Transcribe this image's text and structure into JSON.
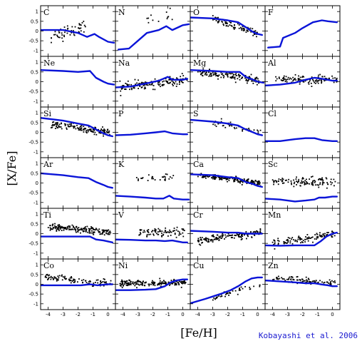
{
  "chart_data": {
    "type": "scatter",
    "xlabel": "[Fe/H]",
    "ylabel": "[X/Fe]",
    "credit": "Kobayashi et al. 2006",
    "xlim": [
      -4.5,
      0.5
    ],
    "ylim": [
      -1.3,
      1.3
    ],
    "xticks": [
      -4,
      -3,
      -2,
      -1,
      0
    ],
    "yticks": [
      -1,
      -0.5,
      0,
      0.5,
      1
    ],
    "colors": {
      "model": "#0a14d8",
      "points": "#000000"
    },
    "panels": [
      {
        "element": "C",
        "model": [
          [
            -4.6,
            0.05
          ],
          [
            -3,
            0.05
          ],
          [
            -2,
            -0.1
          ],
          [
            -1.4,
            -0.3
          ],
          [
            -0.9,
            -0.15
          ],
          [
            -0.6,
            -0.3
          ],
          [
            0,
            -0.55
          ],
          [
            0.4,
            -0.6
          ]
        ],
        "obs": {
          "n": 55,
          "x": [
            -3.8,
            -1.5
          ],
          "y": [
            -0.3,
            0.3
          ],
          "sd": 0.3
        }
      },
      {
        "element": "N",
        "model": [
          [
            -4.3,
            -0.95
          ],
          [
            -3.6,
            -0.9
          ],
          [
            -3,
            -0.5
          ],
          [
            -2.4,
            -0.1
          ],
          [
            -1.6,
            0.05
          ],
          [
            -1.1,
            0.25
          ],
          [
            -0.7,
            0.05
          ],
          [
            0,
            0.3
          ],
          [
            0.4,
            0.35
          ]
        ],
        "obs": {
          "n": 12,
          "x": [
            -3,
            -0.2
          ],
          "y": [
            0.3,
            1.0
          ],
          "sd": 0.3
        }
      },
      {
        "element": "O",
        "model": [
          [
            -4.6,
            0.7
          ],
          [
            -3,
            0.65
          ],
          [
            -2,
            0.55
          ],
          [
            -1.3,
            0.45
          ],
          [
            -0.8,
            0.2
          ],
          [
            -0.3,
            -0.05
          ],
          [
            0,
            -0.15
          ],
          [
            0.3,
            -0.2
          ]
        ],
        "obs": {
          "n": 85,
          "x": [
            -3,
            0
          ],
          "y": [
            0.6,
            -0.1
          ],
          "sd": 0.15
        }
      },
      {
        "element": "F",
        "model": [
          [
            -4.3,
            -0.85
          ],
          [
            -3.5,
            -0.8
          ],
          [
            -3.3,
            -0.35
          ],
          [
            -2.5,
            -0.1
          ],
          [
            -2,
            0.15
          ],
          [
            -1.3,
            0.45
          ],
          [
            -0.7,
            0.55
          ],
          [
            -0.3,
            0.5
          ],
          [
            0.3,
            0.45
          ]
        ],
        "obs": null
      },
      {
        "element": "Ne",
        "model": [
          [
            -4.6,
            0.6
          ],
          [
            -3,
            0.55
          ],
          [
            -2,
            0.5
          ],
          [
            -1.2,
            0.55
          ],
          [
            -0.8,
            0.2
          ],
          [
            -0.3,
            0
          ],
          [
            0,
            -0.1
          ],
          [
            0.4,
            -0.15
          ]
        ],
        "obs": null
      },
      {
        "element": "Na",
        "model": [
          [
            -4.6,
            -0.3
          ],
          [
            -3.5,
            -0.25
          ],
          [
            -2.5,
            -0.1
          ],
          [
            -1.6,
            0.05
          ],
          [
            -1,
            0.25
          ],
          [
            -0.7,
            0.1
          ],
          [
            0,
            0.1
          ],
          [
            0.3,
            0.15
          ]
        ],
        "obs": {
          "n": 140,
          "x": [
            -4.2,
            0.3
          ],
          "y": [
            -0.3,
            0.1
          ],
          "sd": 0.2
        }
      },
      {
        "element": "Mg",
        "model": [
          [
            -4.6,
            0.6
          ],
          [
            -3,
            0.55
          ],
          [
            -2,
            0.5
          ],
          [
            -1.2,
            0.5
          ],
          [
            -0.8,
            0.25
          ],
          [
            -0.3,
            0.1
          ],
          [
            0,
            0
          ],
          [
            0.4,
            -0.05
          ]
        ],
        "obs": {
          "n": 140,
          "x": [
            -4,
            0.2
          ],
          "y": [
            0.5,
            0.05
          ],
          "sd": 0.15
        }
      },
      {
        "element": "Al",
        "model": [
          [
            -4.6,
            -0.2
          ],
          [
            -3.5,
            -0.15
          ],
          [
            -2.5,
            -0.05
          ],
          [
            -1.8,
            0.1
          ],
          [
            -1.2,
            0.2
          ],
          [
            -0.7,
            0.15
          ],
          [
            0,
            0.05
          ],
          [
            0.3,
            0.05
          ]
        ],
        "obs": {
          "n": 110,
          "x": [
            -3.8,
            0.3
          ],
          "y": [
            0.1,
            0.1
          ],
          "sd": 0.2
        }
      },
      {
        "element": "Si",
        "model": [
          [
            -4.6,
            0.75
          ],
          [
            -3,
            0.6
          ],
          [
            -2,
            0.45
          ],
          [
            -1.3,
            0.35
          ],
          [
            -0.8,
            0.15
          ],
          [
            -0.3,
            -0.05
          ],
          [
            0,
            -0.15
          ],
          [
            0.3,
            -0.2
          ]
        ],
        "obs": {
          "n": 150,
          "x": [
            -3.8,
            0.2
          ],
          "y": [
            0.4,
            0.0
          ],
          "sd": 0.15
        }
      },
      {
        "element": "P",
        "model": [
          [
            -4.6,
            -0.15
          ],
          [
            -3.5,
            -0.12
          ],
          [
            -2.5,
            -0.05
          ],
          [
            -1.8,
            0
          ],
          [
            -1.2,
            0.05
          ],
          [
            -0.7,
            -0.05
          ],
          [
            0,
            -0.1
          ],
          [
            0.3,
            -0.1
          ]
        ],
        "obs": null
      },
      {
        "element": "S",
        "model": [
          [
            -4.6,
            0.65
          ],
          [
            -3,
            0.55
          ],
          [
            -2,
            0.45
          ],
          [
            -1.3,
            0.35
          ],
          [
            -0.8,
            0.15
          ],
          [
            -0.3,
            0
          ],
          [
            0,
            -0.1
          ],
          [
            0.3,
            -0.15
          ]
        ],
        "obs": {
          "n": 45,
          "x": [
            -3,
            0.2
          ],
          "y": [
            0.5,
            0
          ],
          "sd": 0.15
        }
      },
      {
        "element": "Cl",
        "model": [
          [
            -4.6,
            -0.45
          ],
          [
            -3.5,
            -0.45
          ],
          [
            -2.5,
            -0.35
          ],
          [
            -1.8,
            -0.3
          ],
          [
            -1.2,
            -0.3
          ],
          [
            -0.7,
            -0.4
          ],
          [
            0,
            -0.45
          ],
          [
            0.3,
            -0.45
          ]
        ],
        "obs": null
      },
      {
        "element": "Ar",
        "model": [
          [
            -4.6,
            0.5
          ],
          [
            -3,
            0.4
          ],
          [
            -2,
            0.3
          ],
          [
            -1.3,
            0.25
          ],
          [
            -0.8,
            0.05
          ],
          [
            -0.3,
            -0.1
          ],
          [
            0,
            -0.2
          ],
          [
            0.3,
            -0.25
          ]
        ],
        "obs": null
      },
      {
        "element": "K",
        "model": [
          [
            -4.6,
            -0.65
          ],
          [
            -3.5,
            -0.7
          ],
          [
            -2.5,
            -0.75
          ],
          [
            -1.8,
            -0.8
          ],
          [
            -1.3,
            -0.8
          ],
          [
            -0.9,
            -0.65
          ],
          [
            -0.6,
            -0.8
          ],
          [
            0,
            -0.85
          ],
          [
            0.4,
            -0.85
          ]
        ],
        "obs": {
          "n": 28,
          "x": [
            -3.2,
            -0.6
          ],
          "y": [
            0.25,
            0.3
          ],
          "sd": 0.12
        }
      },
      {
        "element": "Ca",
        "model": [
          [
            -4.6,
            0.45
          ],
          [
            -3,
            0.4
          ],
          [
            -2,
            0.3
          ],
          [
            -1.3,
            0.25
          ],
          [
            -0.8,
            0.05
          ],
          [
            -0.3,
            -0.05
          ],
          [
            0,
            -0.15
          ],
          [
            0.3,
            -0.2
          ]
        ],
        "obs": {
          "n": 160,
          "x": [
            -4,
            0.2
          ],
          "y": [
            0.4,
            0.0
          ],
          "sd": 0.12
        }
      },
      {
        "element": "Sc",
        "model": [
          [
            -4.6,
            -0.8
          ],
          [
            -3.5,
            -0.85
          ],
          [
            -2.5,
            -0.95
          ],
          [
            -1.8,
            -0.9
          ],
          [
            -1.2,
            -0.85
          ],
          [
            -0.9,
            -0.75
          ],
          [
            -0.5,
            -0.75
          ],
          [
            0,
            -0.7
          ],
          [
            0.3,
            -0.7
          ]
        ],
        "obs": {
          "n": 110,
          "x": [
            -4,
            0.2
          ],
          "y": [
            0.05,
            0.05
          ],
          "sd": 0.2
        }
      },
      {
        "element": "Ti",
        "model": [
          [
            -4.6,
            -0.15
          ],
          [
            -3,
            -0.15
          ],
          [
            -2,
            -0.15
          ],
          [
            -1.2,
            -0.15
          ],
          [
            -0.8,
            -0.3
          ],
          [
            -0.3,
            -0.35
          ],
          [
            0,
            -0.4
          ],
          [
            0.3,
            -0.45
          ]
        ],
        "obs": {
          "n": 170,
          "x": [
            -4,
            0.2
          ],
          "y": [
            0.35,
            0.05
          ],
          "sd": 0.15
        }
      },
      {
        "element": "V",
        "model": [
          [
            -4.6,
            -0.3
          ],
          [
            -3.5,
            -0.32
          ],
          [
            -2.5,
            -0.35
          ],
          [
            -1.8,
            -0.35
          ],
          [
            -1.2,
            -0.38
          ],
          [
            -0.7,
            -0.35
          ],
          [
            0,
            -0.45
          ],
          [
            0.3,
            -0.45
          ]
        ],
        "obs": {
          "n": 80,
          "x": [
            -3,
            0.2
          ],
          "y": [
            0.05,
            0.1
          ],
          "sd": 0.18
        }
      },
      {
        "element": "Cr",
        "model": [
          [
            -4.6,
            0.15
          ],
          [
            -3,
            0.1
          ],
          [
            -2,
            0.05
          ],
          [
            -1.3,
            0.05
          ],
          [
            -0.8,
            0
          ],
          [
            -0.3,
            0
          ],
          [
            0,
            0
          ],
          [
            0.3,
            0
          ]
        ],
        "obs": {
          "n": 150,
          "x": [
            -4,
            0.2
          ],
          "y": [
            -0.35,
            0.05
          ],
          "sd": 0.15
        }
      },
      {
        "element": "Mn",
        "model": [
          [
            -4.6,
            -0.6
          ],
          [
            -3.5,
            -0.62
          ],
          [
            -2.5,
            -0.6
          ],
          [
            -1.8,
            -0.6
          ],
          [
            -1.2,
            -0.6
          ],
          [
            -0.8,
            -0.4
          ],
          [
            -0.4,
            -0.15
          ],
          [
            0,
            0
          ],
          [
            0.3,
            0.05
          ]
        ],
        "obs": {
          "n": 110,
          "x": [
            -4,
            0.2
          ],
          "y": [
            -0.5,
            0
          ],
          "sd": 0.15
        }
      },
      {
        "element": "Co",
        "model": [
          [
            -4.6,
            -0.05
          ],
          [
            -3.5,
            -0.05
          ],
          [
            -2.5,
            -0.05
          ],
          [
            -1.8,
            -0.05
          ],
          [
            -1.2,
            0
          ],
          [
            -0.7,
            -0.05
          ],
          [
            0,
            0
          ],
          [
            0.3,
            0
          ]
        ],
        "obs": {
          "n": 100,
          "x": [
            -4.2,
            0.2
          ],
          "y": [
            0.4,
            0
          ],
          "sd": 0.15
        }
      },
      {
        "element": "Ni",
        "model": [
          [
            -4.6,
            -0.3
          ],
          [
            -3.5,
            -0.3
          ],
          [
            -2.5,
            -0.28
          ],
          [
            -1.8,
            -0.25
          ],
          [
            -1.2,
            -0.1
          ],
          [
            -0.8,
            0.1
          ],
          [
            -0.4,
            0.2
          ],
          [
            0,
            0.25
          ],
          [
            0.3,
            0.25
          ]
        ],
        "obs": {
          "n": 180,
          "x": [
            -4.2,
            0.2
          ],
          "y": [
            0.05,
            0.05
          ],
          "sd": 0.15
        }
      },
      {
        "element": "Cu",
        "model": [
          [
            -4.6,
            -1.0
          ],
          [
            -3.5,
            -0.75
          ],
          [
            -2.5,
            -0.5
          ],
          [
            -1.8,
            -0.3
          ],
          [
            -1.3,
            -0.1
          ],
          [
            -0.8,
            0.15
          ],
          [
            -0.4,
            0.3
          ],
          [
            0,
            0.35
          ],
          [
            0.3,
            0.35
          ]
        ],
        "obs": {
          "n": 45,
          "x": [
            -3,
            0.2
          ],
          "y": [
            -0.7,
            0
          ],
          "sd": 0.15
        }
      },
      {
        "element": "Zn",
        "model": [
          [
            -4.6,
            0.2
          ],
          [
            -3.5,
            0.15
          ],
          [
            -2.5,
            0.1
          ],
          [
            -1.8,
            0.05
          ],
          [
            -1.2,
            0.05
          ],
          [
            -0.8,
            0
          ],
          [
            -0.3,
            -0.05
          ],
          [
            0,
            -0.1
          ],
          [
            0.3,
            -0.1
          ]
        ],
        "obs": {
          "n": 100,
          "x": [
            -4,
            0.2
          ],
          "y": [
            0.3,
            0.05
          ],
          "sd": 0.15
        }
      }
    ]
  }
}
